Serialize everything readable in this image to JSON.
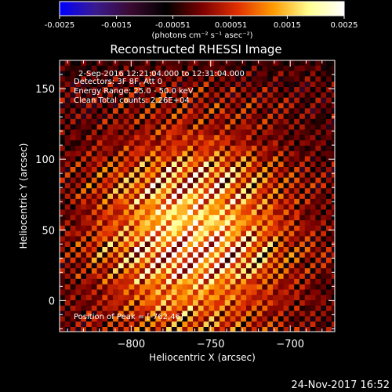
{
  "colorbar": {
    "ticks": [
      "-0.0025",
      "-0.0015",
      "-0.00051",
      "0.00051",
      "0.0015",
      "0.0025"
    ],
    "min": -0.0025,
    "max": 0.0025,
    "colors": [
      "#0000ff",
      "#3a1a90",
      "#3a0a30",
      "#000000",
      "#7a0000",
      "#e03000",
      "#ff9a00",
      "#ffff90",
      "#ffffff"
    ]
  },
  "chart_data": {
    "type": "heatmap",
    "title": "Reconstructed RHESSI Image",
    "xlabel": "Heliocentric X (arcsec)",
    "ylabel": "Heliocentric Y (arcsec)",
    "unit_label": "(photons cm⁻² s⁻¹ asec⁻²)",
    "xlim": [
      -845,
      -672
    ],
    "ylim": [
      -22,
      170
    ],
    "xticks": [
      -800,
      -750,
      -700
    ],
    "yticks": [
      0,
      50,
      100,
      150
    ],
    "annotations": {
      "time_range": "2-Sep-2016 12:21:04.000 to 12:31:04.000",
      "detectors": "Detectors: 3F 8F, Att 0",
      "energy": "Energy Range: 25.0 - 50.0 keV",
      "clean": "Clean    Total counts: 2.26E+04",
      "peak": "Position of Peak = [-762,46]"
    },
    "peak": [
      -762,
      46
    ],
    "grid": false
  },
  "footer": {
    "timestamp": "24-Nov-2017 16:52"
  }
}
